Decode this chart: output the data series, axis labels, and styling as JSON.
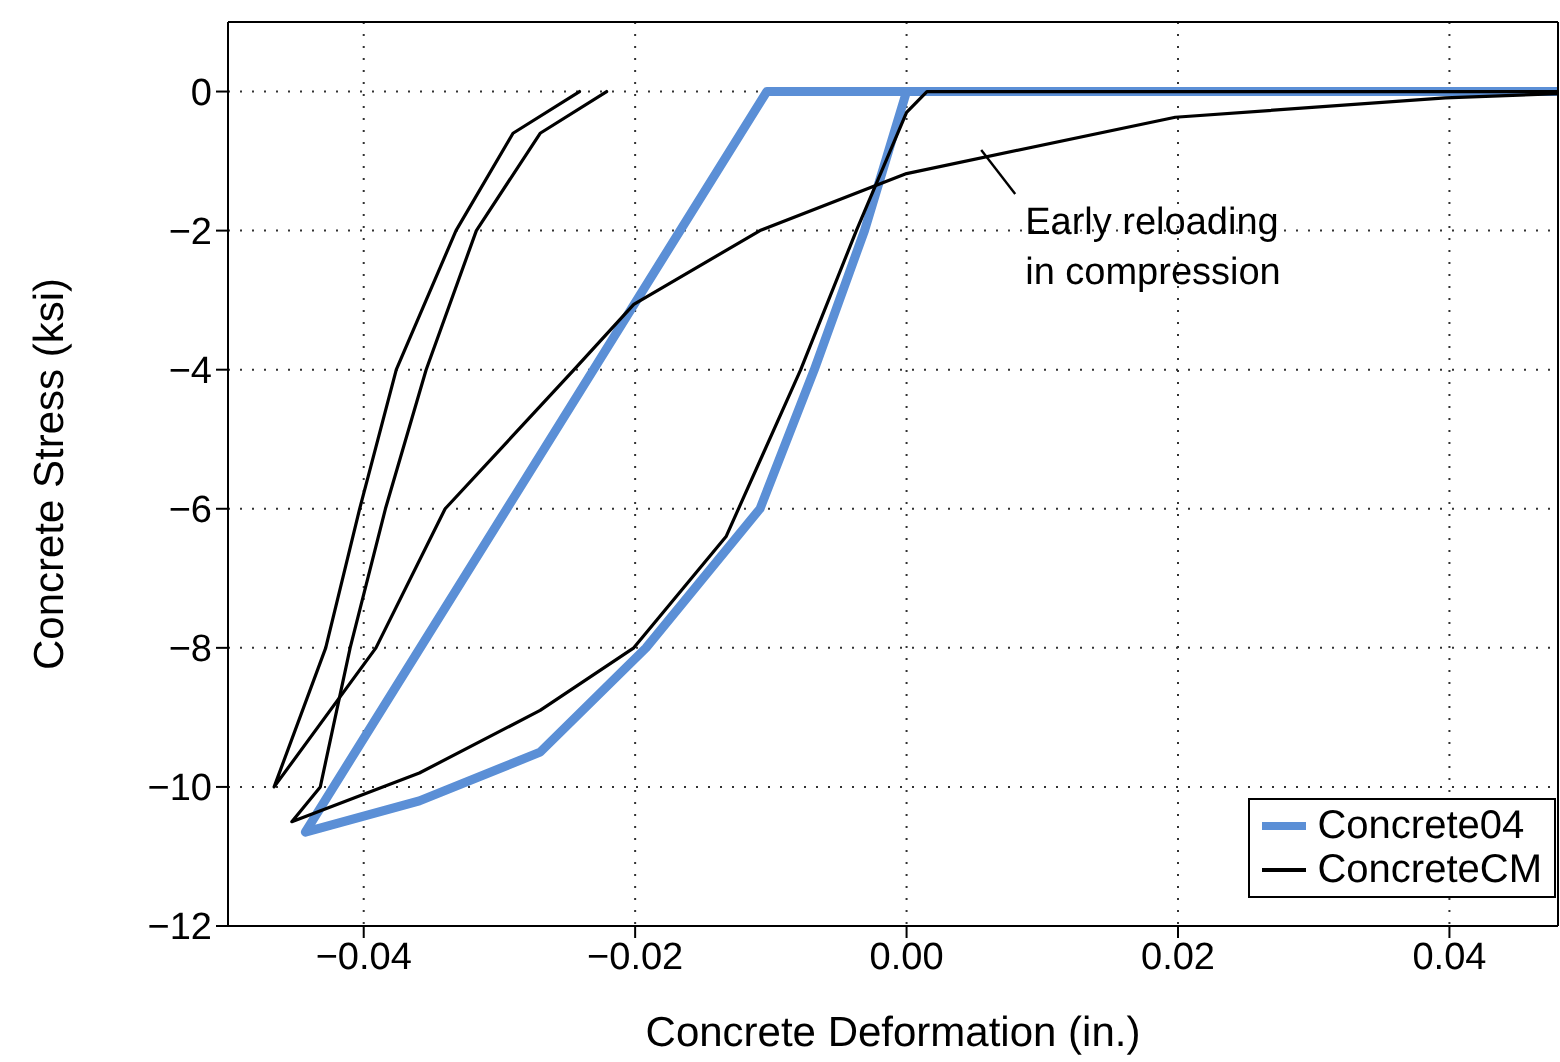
{
  "chart_data": {
    "type": "line",
    "xlabel": "Concrete Deformation (in.)",
    "ylabel": "Concrete Stress (ksi)",
    "xlim": [
      -0.05,
      0.048
    ],
    "ylim": [
      -12,
      1
    ],
    "xticks": [
      -0.04,
      -0.02,
      {
        "value": 0,
        "label": "0.00"
      },
      0.02,
      0.04
    ],
    "yticks": [
      -12,
      -10,
      -8,
      -6,
      -4,
      -2,
      0
    ],
    "grid": true,
    "legend": "bottom right",
    "marker": "none",
    "line_style": "solid",
    "annotations": [
      {
        "text": "Early reloading\nin compression",
        "x": 0.0055,
        "y": -0.84
      }
    ],
    "series": [
      {
        "name": "Concrete04",
        "color": "#5b8fd6",
        "x": [
          0.0,
          -0.0031,
          -0.0068,
          -0.0108,
          -0.0192,
          -0.027,
          -0.0359,
          -0.0443,
          -0.0103,
          0.048
        ],
        "values": [
          0,
          -2,
          -4,
          -6,
          -8,
          -9.5,
          -10.2,
          -10.65,
          0,
          0
        ]
      },
      {
        "name": "ConcreteCM",
        "color": "#000000",
        "x": [
          0.048,
          0.0015,
          0.0,
          -0.0037,
          -0.0078,
          -0.0133,
          -0.0201,
          -0.027,
          -0.0359,
          -0.0453,
          -0.0432,
          -0.041,
          -0.0384,
          -0.0354,
          -0.0317,
          -0.027,
          -0.0221
        ],
        "values": [
          0,
          0,
          -0.3,
          -2,
          -4,
          -6.4,
          -8,
          -8.9,
          -9.8,
          -10.5,
          -10,
          -8,
          -6,
          -4,
          -2,
          -0.6,
          0
        ]
      },
      {
        "color": "#000000",
        "x": [
          0.048,
          0.0397,
          0.0198,
          0.0,
          -0.0108,
          -0.0201,
          -0.0245,
          -0.034,
          -0.0391,
          -0.0466,
          -0.0428,
          -0.0403,
          -0.0376,
          -0.0332,
          -0.029,
          -0.0241
        ],
        "values": [
          -0.03,
          -0.09,
          -0.37,
          -1.18,
          -2,
          -3.06,
          -4,
          -6,
          -8,
          -10,
          -8,
          -6,
          -4,
          -2,
          -0.6,
          0
        ]
      }
    ]
  }
}
